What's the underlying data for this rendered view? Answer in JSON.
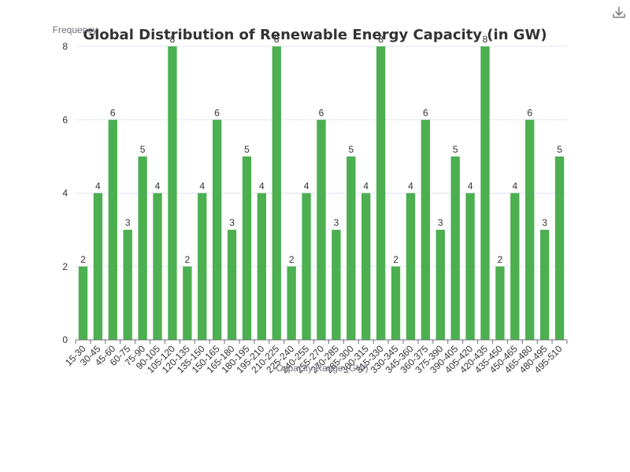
{
  "toolbar": {
    "download_icon": "download-icon"
  },
  "chart_data": {
    "type": "bar",
    "title": "Global Distribution of Renewable Energy Capacity (in GW)",
    "ylabel": "Frequency",
    "xlabel": "Capacity Range (GW)",
    "ylim": [
      0,
      8
    ],
    "yticks": [
      0,
      2,
      4,
      6,
      8
    ],
    "grid": true,
    "legend": "none",
    "bar_color": "#4caf50",
    "categories": [
      "15-30",
      "30-45",
      "45-60",
      "60-75",
      "75-90",
      "90-105",
      "105-120",
      "120-135",
      "135-150",
      "150-165",
      "165-180",
      "180-195",
      "195-210",
      "210-225",
      "225-240",
      "240-255",
      "255-270",
      "270-285",
      "285-300",
      "300-315",
      "315-330",
      "330-345",
      "345-360",
      "360-375",
      "375-390",
      "390-405",
      "405-420",
      "420-435",
      "435-450",
      "450-465",
      "465-480",
      "480-495",
      "495-510"
    ],
    "values": [
      2,
      4,
      6,
      3,
      5,
      4,
      8,
      2,
      4,
      6,
      3,
      5,
      4,
      8,
      2,
      4,
      6,
      3,
      5,
      4,
      8,
      2,
      4,
      6,
      3,
      5,
      4,
      8,
      2,
      4,
      6,
      3,
      5
    ]
  }
}
